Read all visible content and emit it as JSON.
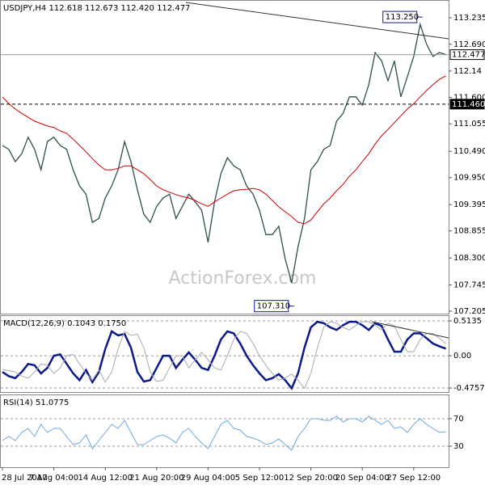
{
  "chart_data": [
    {
      "type": "line",
      "title": "USDJPY,H4  112.618 112.673 112.420 112.477",
      "categories": [
        "28 Jul 2017",
        null,
        null,
        null,
        null,
        null,
        null,
        null,
        "7 Aug 04:00",
        null,
        null,
        null,
        null,
        null,
        null,
        null,
        "14 Aug 12:00",
        null,
        null,
        null,
        null,
        null,
        null,
        null,
        "21 Aug 20:00",
        null,
        null,
        null,
        null,
        null,
        null,
        null,
        "29 Aug 04:00",
        null,
        null,
        null,
        null,
        null,
        null,
        null,
        "5 Sep 12:00",
        null,
        null,
        null,
        null,
        null,
        null,
        null,
        "12 Sep 20:00",
        null,
        null,
        null,
        null,
        null,
        null,
        null,
        "20 Sep 04:00",
        null,
        null,
        null,
        null,
        null,
        null,
        null,
        "27 Sep 12:00",
        null,
        null,
        null,
        null,
        null
      ],
      "series": [
        {
          "color": "#2f4f4f",
          "values": [
            110.61,
            110.53,
            110.28,
            110.44,
            110.78,
            110.53,
            110.11,
            110.69,
            110.78,
            110.61,
            110.53,
            110.11,
            109.78,
            109.61,
            109.03,
            109.11,
            109.53,
            109.78,
            110.11,
            110.69,
            110.28,
            109.7,
            109.2,
            109.03,
            109.36,
            109.53,
            109.61,
            109.11,
            109.36,
            109.61,
            109.45,
            109.28,
            108.62,
            109.45,
            110.03,
            110.36,
            110.19,
            110.11,
            109.78,
            109.61,
            109.28,
            108.78,
            108.78,
            108.95,
            108.28,
            107.79,
            108.53,
            109.11,
            110.11,
            110.28,
            110.53,
            110.61,
            111.11,
            111.27,
            111.61,
            111.61,
            111.44,
            111.86,
            112.52,
            112.35,
            111.94,
            112.35,
            111.61,
            112.02,
            112.44,
            113.1,
            112.69,
            112.44,
            112.52,
            112.477
          ]
        },
        {
          "color": "#cc0000",
          "values": [
            111.61,
            111.47,
            111.36,
            111.27,
            111.19,
            111.11,
            111.06,
            111.01,
            110.98,
            110.91,
            110.86,
            110.74,
            110.61,
            110.48,
            110.34,
            110.21,
            110.11,
            110.11,
            110.14,
            110.19,
            110.19,
            110.11,
            110.03,
            109.91,
            109.78,
            109.7,
            109.65,
            109.6,
            109.56,
            109.53,
            109.48,
            109.41,
            109.36,
            109.45,
            109.53,
            109.61,
            109.68,
            109.7,
            109.71,
            109.73,
            109.7,
            109.61,
            109.48,
            109.35,
            109.25,
            109.15,
            109.03,
            109.0,
            109.08,
            109.25,
            109.41,
            109.53,
            109.68,
            109.81,
            109.98,
            110.11,
            110.28,
            110.44,
            110.64,
            110.81,
            110.94,
            111.08,
            111.22,
            111.36,
            111.47,
            111.61,
            111.74,
            111.86,
            111.97,
            112.04
          ]
        }
      ],
      "ylim": [
        107.155,
        113.6
      ],
      "yticks": [
        113.235,
        {
          "value": 112.69,
          "label": "112.690"
        },
        112.14,
        {
          "value": 111.6,
          "label": "111.600"
        },
        111.055,
        {
          "value": 110.49,
          "label": "110.490"
        },
        {
          "value": 109.95,
          "label": "109.950"
        },
        109.395,
        108.855,
        {
          "value": 108.3,
          "label": "108.300"
        },
        107.745,
        107.205
      ],
      "grid": false,
      "high_label": {
        "value": 113.25,
        "label": "113.250"
      },
      "low_label": {
        "value": 107.31,
        "label": "107.310"
      },
      "levels": [
        {
          "value": 112.477,
          "style": "solid"
        },
        {
          "value": 111.46,
          "label": "111.460",
          "style": "dashed"
        }
      ]
    },
    {
      "type": "line",
      "title": "MACD(12,26,9) 0.1043 0.1750",
      "series": [
        {
          "color": "#0a1a8c",
          "values": [
            -0.24,
            -0.3,
            -0.33,
            -0.24,
            -0.12,
            -0.14,
            -0.26,
            -0.18,
            0,
            0.02,
            -0.12,
            -0.26,
            -0.36,
            -0.21,
            -0.39,
            -0.24,
            0.1,
            0.36,
            0.3,
            0.32,
            0.12,
            -0.24,
            -0.38,
            -0.36,
            -0.18,
            0,
            0,
            -0.18,
            -0.06,
            0.05,
            -0.06,
            -0.18,
            -0.21,
            0,
            0.24,
            0.36,
            0.33,
            0.18,
            0,
            -0.14,
            -0.26,
            -0.36,
            -0.33,
            -0.27,
            -0.36,
            -0.48,
            -0.26,
            0.12,
            0.42,
            0.5,
            0.48,
            0.42,
            0.38,
            0.45,
            0.5,
            0.5,
            0.45,
            0.38,
            0.48,
            0.44,
            0.24,
            0.06,
            0.06,
            0.24,
            0.33,
            0.33,
            0.26,
            0.18,
            0.14,
            0.1043
          ]
        },
        {
          "color": "#aaaaaa",
          "values": [
            -0.2,
            -0.22,
            -0.24,
            -0.3,
            -0.33,
            -0.24,
            -0.12,
            -0.14,
            -0.26,
            -0.18,
            0,
            0.02,
            -0.12,
            -0.26,
            -0.36,
            -0.21,
            -0.39,
            -0.24,
            0.1,
            0.36,
            0.3,
            0.32,
            0.12,
            -0.24,
            -0.38,
            -0.36,
            -0.18,
            0,
            0,
            -0.18,
            -0.06,
            0.05,
            -0.06,
            -0.18,
            -0.21,
            0,
            0.24,
            0.36,
            0.33,
            0.18,
            0,
            -0.14,
            -0.26,
            -0.36,
            -0.33,
            -0.27,
            -0.36,
            -0.48,
            -0.26,
            0.12,
            0.42,
            0.5,
            0.48,
            0.42,
            0.38,
            0.45,
            0.5,
            0.5,
            0.45,
            0.38,
            0.48,
            0.44,
            0.24,
            0.06,
            0.06,
            0.24,
            0.33,
            0.33,
            0.26,
            0.175
          ]
        }
      ],
      "ylim": [
        -0.535,
        0.597
      ],
      "yticks": [
        0.5135,
        {
          "value": 0,
          "label": "0.00"
        },
        -0.4757
      ],
      "grid": true
    },
    {
      "type": "line",
      "title": "RSI(14) 51.0775",
      "series": [
        {
          "color": "#6fa8dc",
          "values": [
            38.2,
            44.1,
            38.2,
            50.0,
            55.9,
            44.1,
            61.8,
            50.0,
            55.9,
            55.9,
            44.1,
            32.4,
            34.7,
            46.5,
            26.5,
            38.2,
            50.0,
            61.8,
            55.9,
            67.6,
            50.0,
            32.4,
            32.4,
            38.2,
            44.1,
            46.5,
            41.8,
            34.7,
            50.0,
            55.9,
            44.1,
            34.7,
            26.5,
            44.1,
            61.8,
            67.6,
            55.9,
            53.5,
            44.1,
            41.8,
            38.2,
            32.4,
            34.7,
            40.6,
            32.4,
            24.1,
            44.1,
            55.9,
            70,
            70,
            67.6,
            67.6,
            73.5,
            65.3,
            70,
            70,
            65.3,
            73.5,
            67.6,
            61.8,
            67.6,
            55.9,
            58.2,
            50.0,
            61.8,
            70,
            61.8,
            55.9,
            50.0,
            51.1
          ]
        }
      ],
      "ylim": [
        -0.6,
        105.3
      ],
      "yticks": [
        70,
        30
      ],
      "grid": true
    }
  ]
}
